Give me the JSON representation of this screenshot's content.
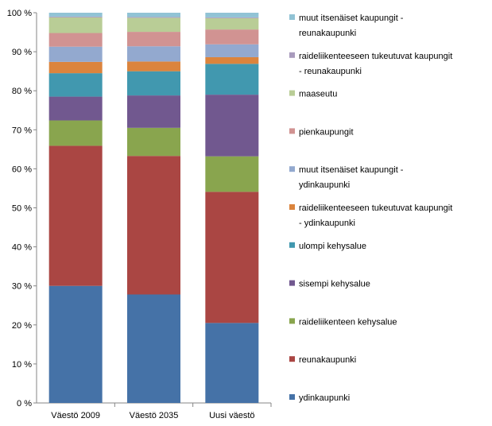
{
  "chart_data": {
    "type": "bar",
    "stacked": true,
    "normalized": true,
    "categories": [
      "Väestö 2009",
      "Väestö 2035",
      "Uusi väestö"
    ],
    "ylim": [
      0,
      100
    ],
    "yticks": [
      "0 %",
      "10 %",
      "20 %",
      "30 %",
      "40 %",
      "50 %",
      "60 %",
      "70 %",
      "80 %",
      "90 %",
      "100 %"
    ],
    "grid": false,
    "legend_position": "right",
    "series": [
      {
        "name": "ydinkaupunki",
        "color": "#4572A7",
        "values": [
          30.0,
          27.8,
          20.5
        ]
      },
      {
        "name": "reunakaupunki",
        "color": "#AA4643",
        "values": [
          35.9,
          35.5,
          33.6
        ]
      },
      {
        "name": "raideliikenteen kehysalue",
        "color": "#89A54E",
        "values": [
          6.5,
          7.2,
          9.1
        ]
      },
      {
        "name": "sisempi kehysalue",
        "color": "#71588F",
        "values": [
          6.1,
          8.3,
          15.8
        ]
      },
      {
        "name": "ulompi kehysalue",
        "color": "#4198AF",
        "values": [
          6.0,
          6.2,
          7.9
        ]
      },
      {
        "name": "raideliikenteeseen tukeutuvat kaupungit - ydinkaupunki",
        "color": "#DB843D",
        "values": [
          2.9,
          2.5,
          1.7
        ]
      },
      {
        "name": "muut itsenäiset kaupungit - ydinkaupunki",
        "color": "#93A9CF",
        "values": [
          3.9,
          3.9,
          3.3
        ]
      },
      {
        "name": "pienkaupungit",
        "color": "#D19392",
        "values": [
          3.5,
          3.7,
          3.8
        ]
      },
      {
        "name": "maaseutu",
        "color": "#B9CD96",
        "values": [
          4.0,
          3.6,
          2.9
        ]
      },
      {
        "name": "raideliikenteeseen tukeutuvat kaupungit - reunakaupunki",
        "color": "#A99BBD",
        "values": [
          0.2,
          0.2,
          0.2
        ]
      },
      {
        "name": "muut itsenäiset kaupungit - reunakaupunki",
        "color": "#91C3D5",
        "values": [
          1.0,
          1.1,
          1.2
        ]
      }
    ]
  }
}
